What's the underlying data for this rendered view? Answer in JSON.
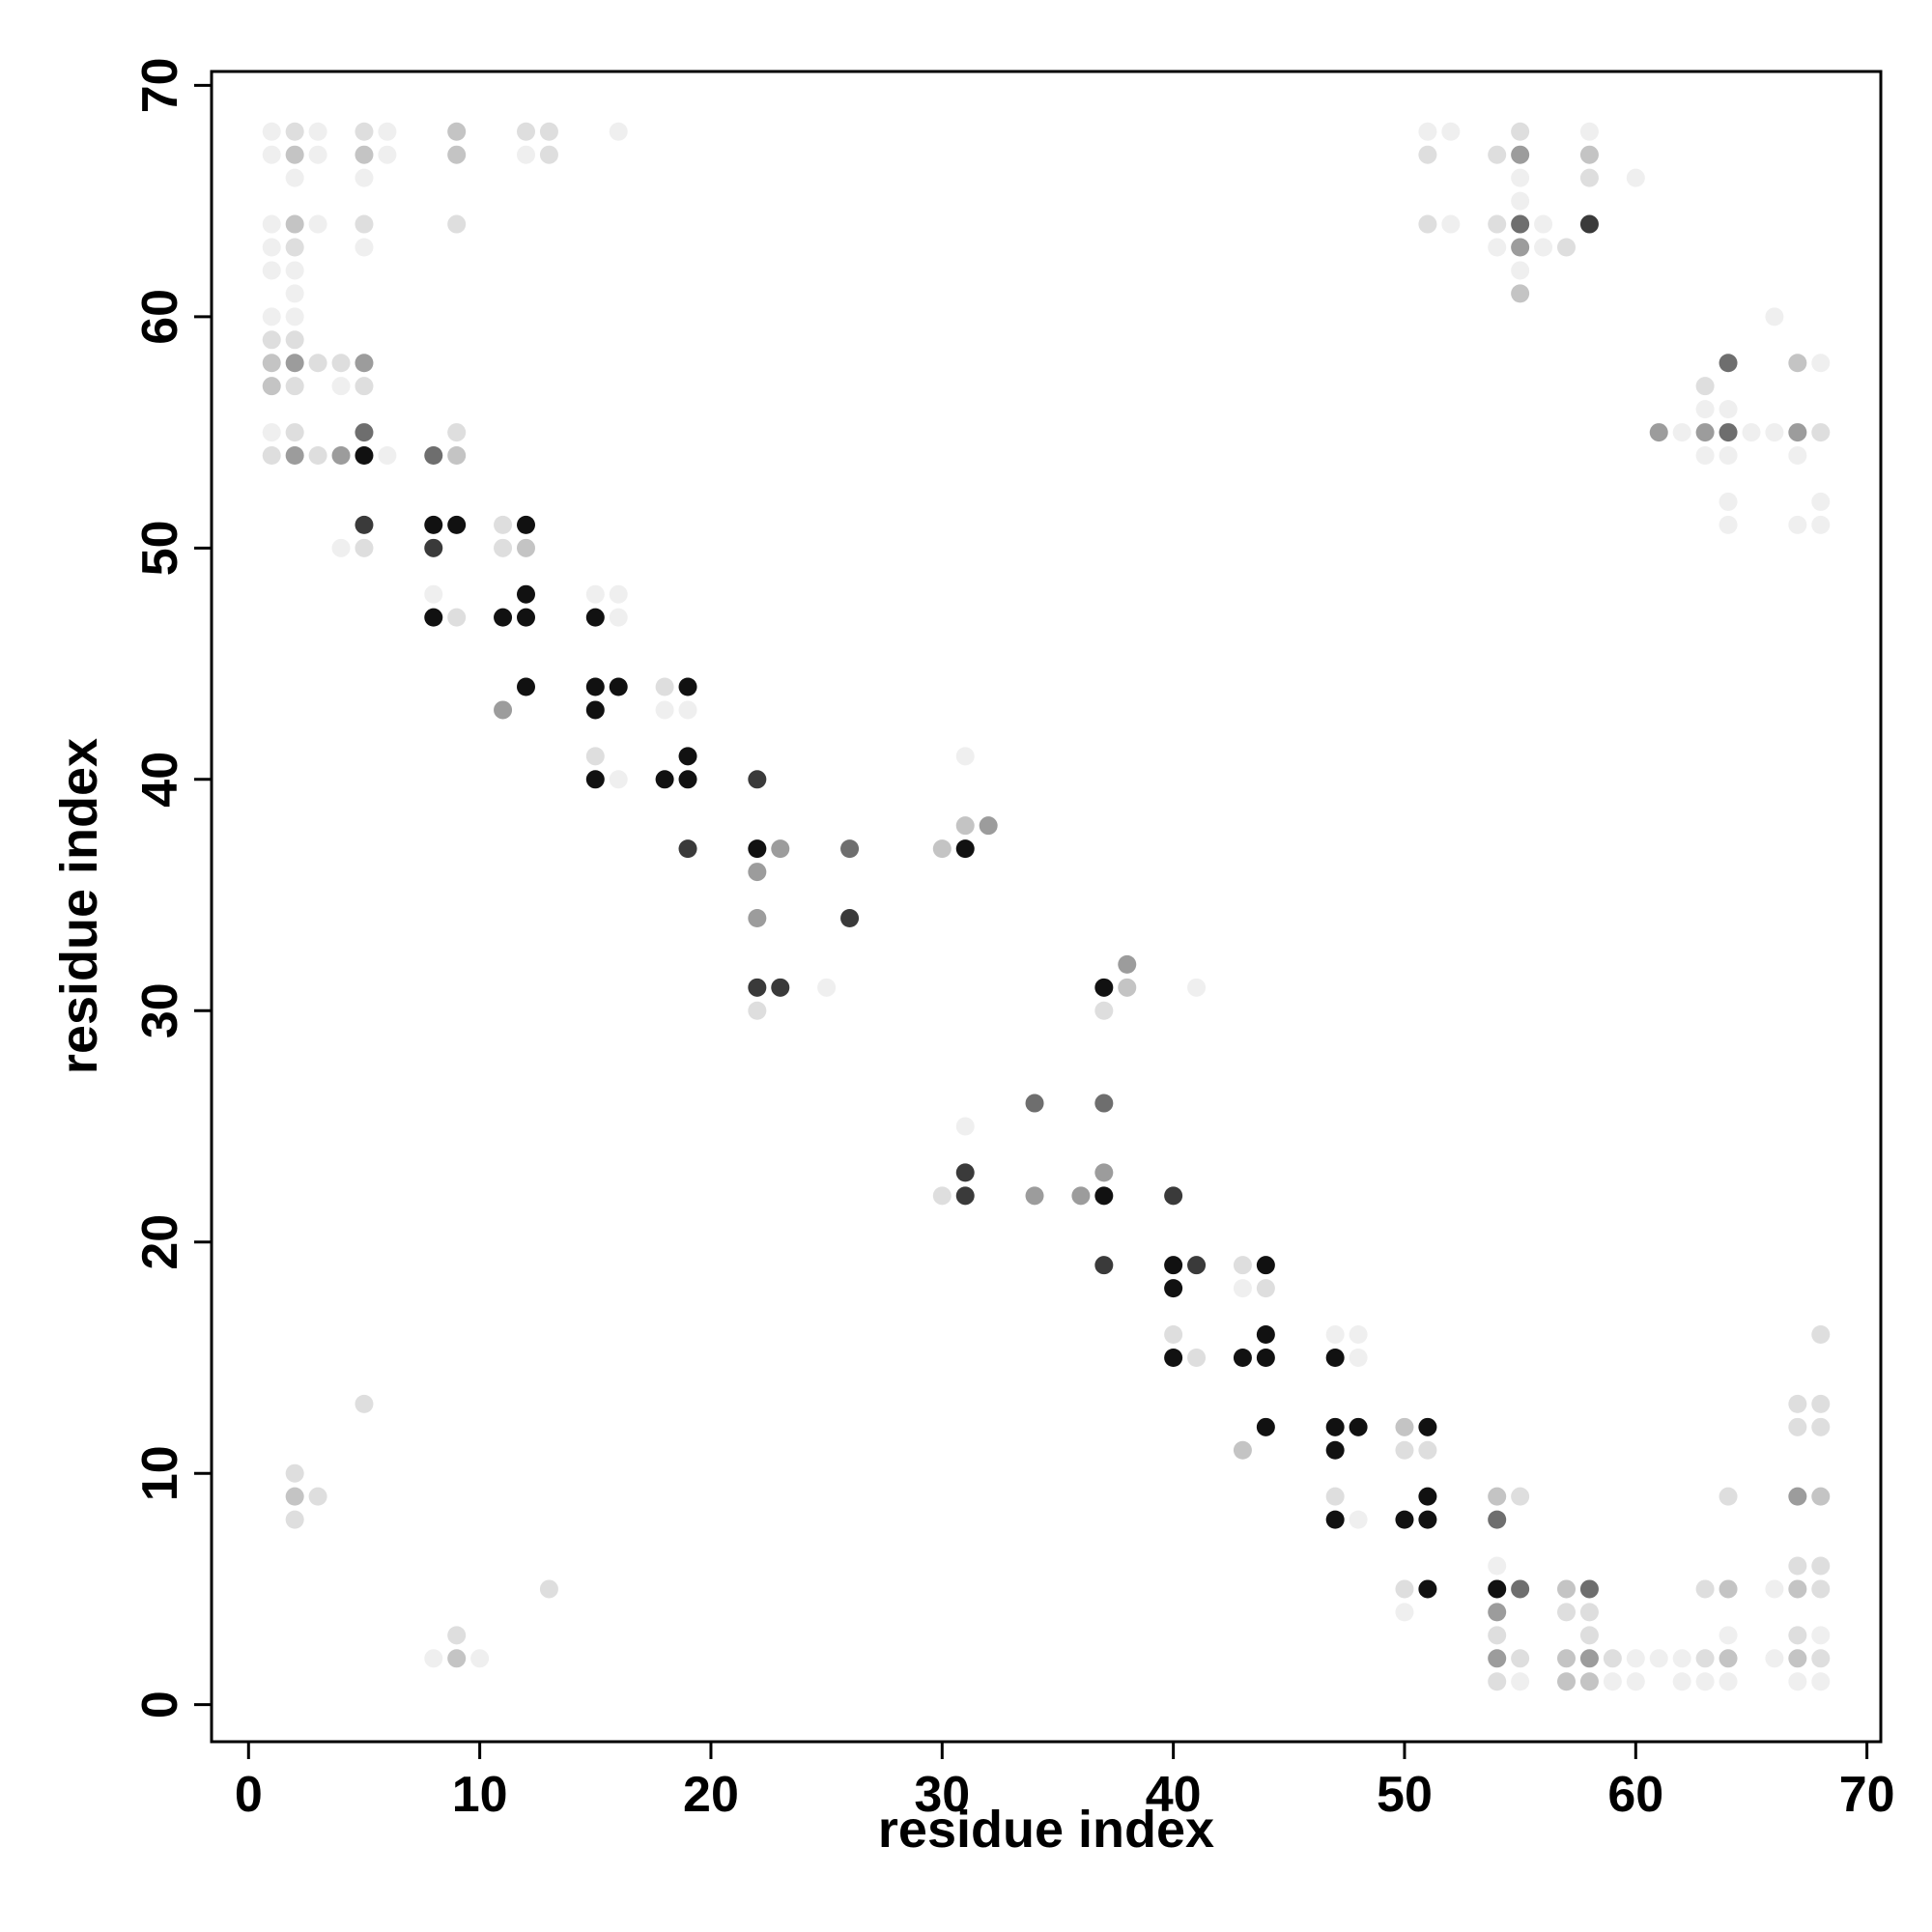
{
  "chart_data": {
    "type": "scatter",
    "xlabel": "residue index",
    "ylabel": "residue index",
    "xlim": [
      -1.6,
      70.6
    ],
    "ylim": [
      -1.6,
      70.6
    ],
    "xticks": [
      0,
      10,
      20,
      30,
      40,
      50,
      60,
      70
    ],
    "yticks": [
      0,
      10,
      20,
      30,
      40,
      50,
      60,
      70
    ],
    "series": [
      {
        "color": "#111111",
        "x": [
          5,
          8,
          9,
          12,
          12,
          8,
          11,
          12,
          15,
          12,
          15,
          16,
          19,
          15,
          19,
          15,
          18,
          19,
          22,
          31,
          37,
          37,
          40,
          44,
          40,
          44,
          40,
          43,
          44,
          47,
          44,
          47,
          48,
          51,
          47,
          51,
          47,
          50,
          51,
          51,
          54
        ],
        "values": [
          54,
          51,
          51,
          51,
          48,
          47,
          47,
          47,
          47,
          44,
          44,
          44,
          44,
          43,
          41,
          40,
          40,
          40,
          37,
          37,
          31,
          22,
          19,
          19,
          18,
          16,
          15,
          15,
          15,
          15,
          12,
          12,
          12,
          12,
          11,
          9,
          8,
          8,
          8,
          5,
          5
        ]
      },
      {
        "color": "#3a3a3a",
        "x": [
          5,
          8,
          22,
          19,
          26,
          22,
          23,
          31,
          31,
          40,
          37,
          41,
          58
        ],
        "values": [
          51,
          50,
          40,
          37,
          34,
          31,
          31,
          23,
          22,
          22,
          19,
          19,
          64
        ]
      },
      {
        "color": "#6e6e6e",
        "x": [
          55,
          64,
          5,
          64,
          8,
          26,
          34,
          37,
          54,
          55,
          58
        ],
        "values": [
          64,
          58,
          55,
          55,
          54,
          37,
          26,
          26,
          8,
          5,
          5
        ]
      },
      {
        "color": "#9c9c9c",
        "x": [
          55,
          55,
          2,
          5,
          61,
          63,
          67,
          2,
          4,
          11,
          23,
          22,
          22,
          32,
          38,
          37,
          34,
          36,
          67,
          54,
          54,
          58
        ],
        "values": [
          67,
          63,
          58,
          58,
          55,
          55,
          55,
          54,
          54,
          43,
          37,
          36,
          34,
          38,
          32,
          23,
          22,
          22,
          9,
          4,
          2,
          2
        ]
      },
      {
        "color": "#c4c4c4",
        "x": [
          9,
          2,
          5,
          9,
          58,
          2,
          55,
          1,
          67,
          1,
          9,
          12,
          31,
          30,
          38,
          50,
          43,
          2,
          54,
          68,
          57,
          64,
          67,
          9,
          57,
          64,
          67,
          57,
          58
        ],
        "values": [
          68,
          67,
          67,
          67,
          67,
          64,
          61,
          58,
          58,
          57,
          54,
          50,
          38,
          37,
          31,
          12,
          11,
          9,
          9,
          9,
          5,
          5,
          5,
          2,
          2,
          2,
          2,
          1,
          1
        ]
      },
      {
        "color": "#dedede",
        "x": [
          2,
          5,
          12,
          13,
          55,
          13,
          51,
          54,
          58,
          5,
          9,
          51,
          54,
          2,
          57,
          1,
          2,
          3,
          4,
          2,
          5,
          63,
          2,
          9,
          68,
          1,
          3,
          11,
          5,
          11,
          9,
          18,
          15,
          22,
          37,
          43,
          44,
          40,
          41,
          68,
          5,
          67,
          68,
          67,
          68,
          50,
          51,
          2,
          3,
          47,
          55,
          64,
          2,
          67,
          68,
          13,
          50,
          63,
          68,
          57,
          58,
          9,
          54,
          58,
          67,
          55,
          59,
          63,
          68,
          54,
          30
        ],
        "values": [
          68,
          68,
          68,
          68,
          68,
          67,
          67,
          67,
          66,
          64,
          64,
          64,
          64,
          63,
          63,
          59,
          59,
          58,
          58,
          57,
          57,
          57,
          55,
          55,
          55,
          54,
          54,
          51,
          50,
          50,
          47,
          44,
          41,
          30,
          30,
          19,
          18,
          16,
          15,
          16,
          13,
          13,
          13,
          12,
          12,
          11,
          11,
          10,
          9,
          9,
          9,
          9,
          8,
          6,
          6,
          5,
          5,
          5,
          5,
          4,
          4,
          3,
          3,
          3,
          3,
          2,
          2,
          2,
          2,
          1,
          22
        ]
      },
      {
        "color": "#efefef",
        "x": [
          1,
          3,
          6,
          16,
          51,
          52,
          58,
          1,
          3,
          6,
          12,
          2,
          5,
          55,
          60,
          55,
          1,
          3,
          52,
          56,
          1,
          5,
          54,
          56,
          1,
          2,
          55,
          2,
          1,
          2,
          66,
          68,
          4,
          63,
          64,
          1,
          62,
          65,
          66,
          6,
          63,
          64,
          67,
          64,
          68,
          64,
          67,
          68,
          4,
          8,
          15,
          16,
          16,
          18,
          19,
          31,
          16,
          25,
          41,
          31,
          43,
          47,
          48,
          48,
          48,
          54,
          66,
          50,
          64,
          68,
          8,
          10,
          60,
          61,
          62,
          66,
          55,
          59,
          60,
          62,
          63,
          64,
          67,
          68
        ],
        "values": [
          68,
          68,
          68,
          68,
          68,
          68,
          68,
          67,
          67,
          67,
          67,
          66,
          66,
          66,
          66,
          65,
          64,
          64,
          64,
          64,
          63,
          63,
          63,
          63,
          62,
          62,
          62,
          61,
          60,
          60,
          60,
          58,
          57,
          56,
          56,
          55,
          55,
          55,
          55,
          54,
          54,
          54,
          54,
          52,
          52,
          51,
          51,
          51,
          50,
          48,
          48,
          48,
          47,
          43,
          43,
          41,
          40,
          31,
          31,
          25,
          18,
          16,
          16,
          15,
          8,
          6,
          5,
          4,
          3,
          3,
          2,
          2,
          2,
          2,
          2,
          2,
          1,
          1,
          1,
          1,
          1,
          1,
          1,
          1
        ]
      }
    ]
  }
}
